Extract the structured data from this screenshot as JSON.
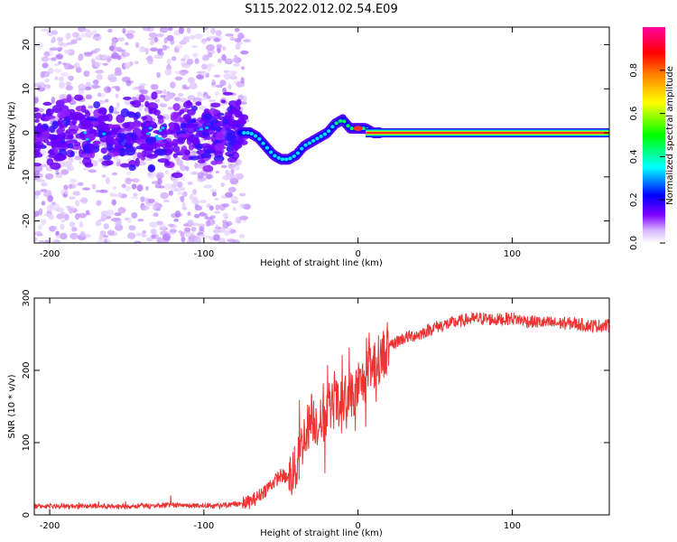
{
  "title": "S115.2022.012.02.54.E09",
  "chart_data": [
    {
      "type": "heatmap",
      "xlabel": "Height of straight line (km)",
      "ylabel": "Frequency (Hz)",
      "xlim": [
        -210,
        163
      ],
      "ylim": [
        -25,
        24
      ],
      "xticks": [
        -200,
        -100,
        0,
        100
      ],
      "yticks": [
        -20,
        -10,
        0,
        10,
        20
      ],
      "colorbar": {
        "label": "Normalized spectral amplitude",
        "range": [
          0,
          1
        ],
        "ticks": [
          0.0,
          0.2,
          0.4,
          0.6,
          0.8
        ],
        "tick_labels": [
          "0.0",
          "0.2",
          "0.4",
          "0.6",
          "0.8"
        ],
        "colormap": [
          "#ffffff",
          "#7f00ff",
          "#0000ff",
          "#00ffff",
          "#00ff00",
          "#ffff00",
          "#ff8000",
          "#ff0000",
          "#ff00a0"
        ]
      },
      "ridge": {
        "description_points_x": [
          -75,
          -70,
          -65,
          -60,
          -55,
          -50,
          -45,
          -40,
          -35,
          -30,
          -25,
          -20,
          -15,
          -10,
          -5,
          0,
          5,
          10,
          20,
          163
        ],
        "description_points_y": [
          0,
          0,
          -1,
          -3,
          -5,
          -6,
          -6,
          -5,
          -3,
          -2,
          -1,
          0,
          2,
          3,
          1,
          1,
          1,
          0,
          0,
          0
        ]
      }
    },
    {
      "type": "line",
      "xlabel": "Height of straight line (km)",
      "ylabel": "SNR (10 * v/v)",
      "xlim": [
        -210,
        163
      ],
      "ylim": [
        0,
        300
      ],
      "xticks": [
        -200,
        -100,
        0,
        100
      ],
      "yticks": [
        0,
        100,
        200,
        300
      ],
      "series": [
        {
          "color": "#ee3333",
          "x": [
            -210,
            -180,
            -150,
            -120,
            -100,
            -90,
            -80,
            -75,
            -70,
            -65,
            -60,
            -55,
            -50,
            -45,
            -40,
            -35,
            -30,
            -25,
            -20,
            -15,
            -10,
            -5,
            0,
            5,
            10,
            15,
            20,
            25,
            30,
            40,
            50,
            60,
            70,
            80,
            90,
            100,
            110,
            120,
            130,
            140,
            150,
            163
          ],
          "values": [
            12,
            12,
            12,
            13,
            13,
            13,
            14,
            16,
            18,
            25,
            35,
            45,
            55,
            50,
            65,
            110,
            135,
            125,
            140,
            155,
            150,
            165,
            175,
            190,
            205,
            220,
            230,
            240,
            245,
            250,
            260,
            265,
            270,
            272,
            270,
            272,
            268,
            266,
            265,
            265,
            262,
            262
          ]
        }
      ]
    }
  ]
}
